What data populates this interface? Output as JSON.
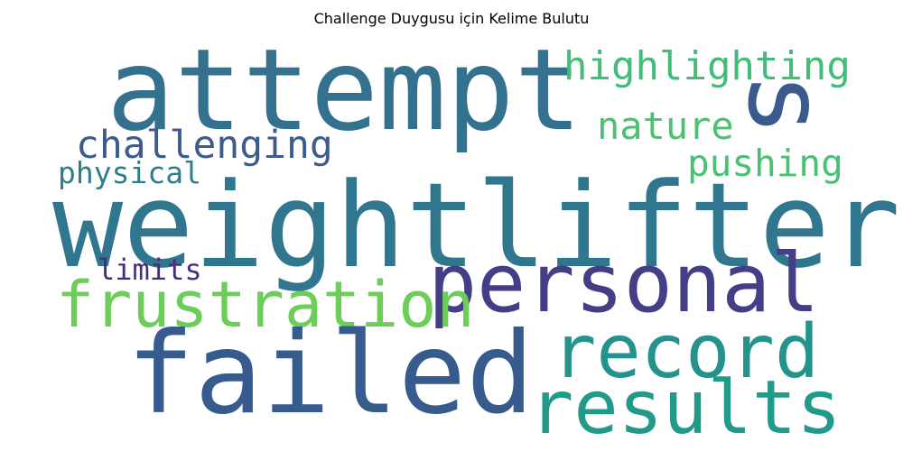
{
  "title": "Challenge Duygusu için Kelime Bulutu",
  "words": [
    {
      "id": "attempt",
      "text": "attempt",
      "color": "#33718f"
    },
    {
      "id": "s",
      "text": "s",
      "color": "#3b5a8e"
    },
    {
      "id": "highlighting",
      "text": "highlighting",
      "color": "#43bc78"
    },
    {
      "id": "nature",
      "text": "nature",
      "color": "#4ac272"
    },
    {
      "id": "challenging",
      "text": "challenging",
      "color": "#3d5c8c"
    },
    {
      "id": "physical",
      "text": "physical",
      "color": "#2e7f8c"
    },
    {
      "id": "pushing",
      "text": "pushing",
      "color": "#48c174"
    },
    {
      "id": "weightlifter",
      "text": "weightlifter",
      "color": "#2f768e"
    },
    {
      "id": "limits",
      "text": "limits",
      "color": "#472d7b"
    },
    {
      "id": "personal",
      "text": "personal",
      "color": "#433e85"
    },
    {
      "id": "frustration",
      "text": "frustration",
      "color": "#6ccd59"
    },
    {
      "id": "record",
      "text": "record",
      "color": "#23938b"
    },
    {
      "id": "failed",
      "text": "failed",
      "color": "#365b8c"
    },
    {
      "id": "results",
      "text": "results",
      "color": "#219a8a"
    }
  ]
}
